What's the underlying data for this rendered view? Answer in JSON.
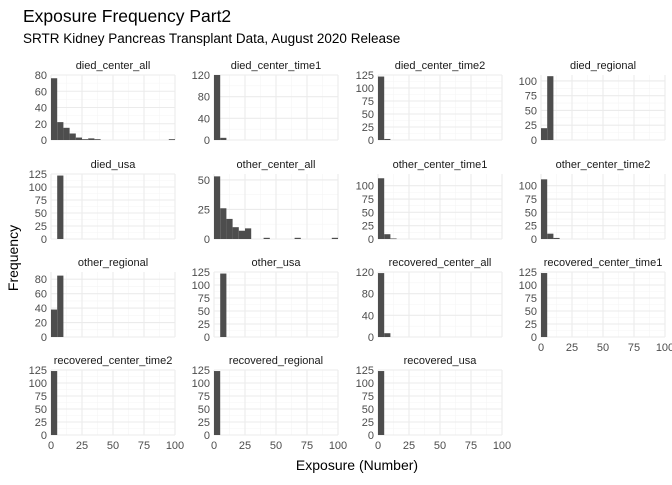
{
  "chart_data": {
    "type": "bar",
    "title": "Exposure Frequency Part2",
    "subtitle": "SRTR Kidney Pancreas Transplant Data, August 2020 Release",
    "xlabel": "Exposure (Number)",
    "ylabel": "Frequency",
    "xlim": [
      0,
      100
    ],
    "xticks": [
      0,
      25,
      50,
      75,
      100
    ],
    "bin_width": 5,
    "grid": true,
    "panels": [
      {
        "name": "died_center_all",
        "ylim": [
          0,
          80
        ],
        "yticks": [
          0,
          20,
          40,
          60,
          80
        ],
        "bins": [
          [
            0,
            76
          ],
          [
            5,
            22
          ],
          [
            10,
            15
          ],
          [
            15,
            8
          ],
          [
            20,
            3
          ],
          [
            25,
            1
          ],
          [
            30,
            2
          ],
          [
            35,
            1
          ],
          [
            95,
            1
          ]
        ]
      },
      {
        "name": "died_center_time1",
        "ylim": [
          0,
          120
        ],
        "yticks": [
          0,
          40,
          80,
          120
        ],
        "bins": [
          [
            0,
            121
          ],
          [
            5,
            4
          ]
        ]
      },
      {
        "name": "died_center_time2",
        "ylim": [
          0,
          125
        ],
        "yticks": [
          0,
          25,
          50,
          75,
          100,
          125
        ],
        "bins": [
          [
            0,
            122
          ],
          [
            5,
            2
          ]
        ]
      },
      {
        "name": "died_regional",
        "ylim": [
          0,
          110
        ],
        "yticks": [
          0,
          25,
          50,
          75,
          100
        ],
        "bins": [
          [
            0,
            20
          ],
          [
            5,
            108
          ]
        ]
      },
      {
        "name": "died_usa",
        "ylim": [
          0,
          125
        ],
        "yticks": [
          0,
          25,
          50,
          75,
          100,
          125
        ],
        "bins": [
          [
            5,
            122
          ]
        ]
      },
      {
        "name": "other_center_all",
        "ylim": [
          0,
          55
        ],
        "yticks": [
          0,
          25,
          50
        ],
        "bins": [
          [
            0,
            53
          ],
          [
            5,
            26
          ],
          [
            10,
            17
          ],
          [
            15,
            10
          ],
          [
            20,
            7
          ],
          [
            25,
            9
          ],
          [
            40,
            1
          ],
          [
            65,
            1
          ],
          [
            95,
            1
          ]
        ]
      },
      {
        "name": "other_center_time1",
        "ylim": [
          0,
          122
        ],
        "yticks": [
          0,
          25,
          50,
          75,
          100
        ],
        "bins": [
          [
            0,
            114
          ],
          [
            5,
            9
          ],
          [
            10,
            1
          ]
        ]
      },
      {
        "name": "other_center_time2",
        "ylim": [
          0,
          122
        ],
        "yticks": [
          0,
          25,
          50,
          75,
          100
        ],
        "bins": [
          [
            0,
            112
          ],
          [
            5,
            10
          ],
          [
            10,
            2
          ]
        ]
      },
      {
        "name": "other_regional",
        "ylim": [
          0,
          90
        ],
        "yticks": [
          0,
          20,
          40,
          60,
          80
        ],
        "bins": [
          [
            0,
            38
          ],
          [
            5,
            85
          ]
        ]
      },
      {
        "name": "other_usa",
        "ylim": [
          0,
          125
        ],
        "yticks": [
          0,
          25,
          50,
          75,
          100,
          125
        ],
        "bins": [
          [
            5,
            122
          ]
        ]
      },
      {
        "name": "recovered_center_all",
        "ylim": [
          0,
          120
        ],
        "yticks": [
          0,
          40,
          80,
          120
        ],
        "bins": [
          [
            0,
            118
          ],
          [
            5,
            7
          ]
        ]
      },
      {
        "name": "recovered_center_time1",
        "ylim": [
          0,
          125
        ],
        "yticks": [
          0,
          25,
          50,
          75,
          100,
          125
        ],
        "bins": [
          [
            0,
            123
          ]
        ]
      },
      {
        "name": "recovered_center_time2",
        "ylim": [
          0,
          125
        ],
        "yticks": [
          0,
          25,
          50,
          75,
          100,
          125
        ],
        "bins": [
          [
            0,
            123
          ]
        ]
      },
      {
        "name": "recovered_regional",
        "ylim": [
          0,
          125
        ],
        "yticks": [
          0,
          25,
          50,
          75,
          100,
          125
        ],
        "bins": [
          [
            0,
            123
          ]
        ]
      },
      {
        "name": "recovered_usa",
        "ylim": [
          0,
          125
        ],
        "yticks": [
          0,
          25,
          50,
          75,
          100,
          125
        ],
        "bins": [
          [
            0,
            123
          ]
        ]
      }
    ],
    "colors": {
      "bar": "#4d4d4d",
      "grid_major": "#ebebeb",
      "grid_minor": "#f5f5f5",
      "text": "#4d4d4d",
      "title": "#000000"
    }
  }
}
